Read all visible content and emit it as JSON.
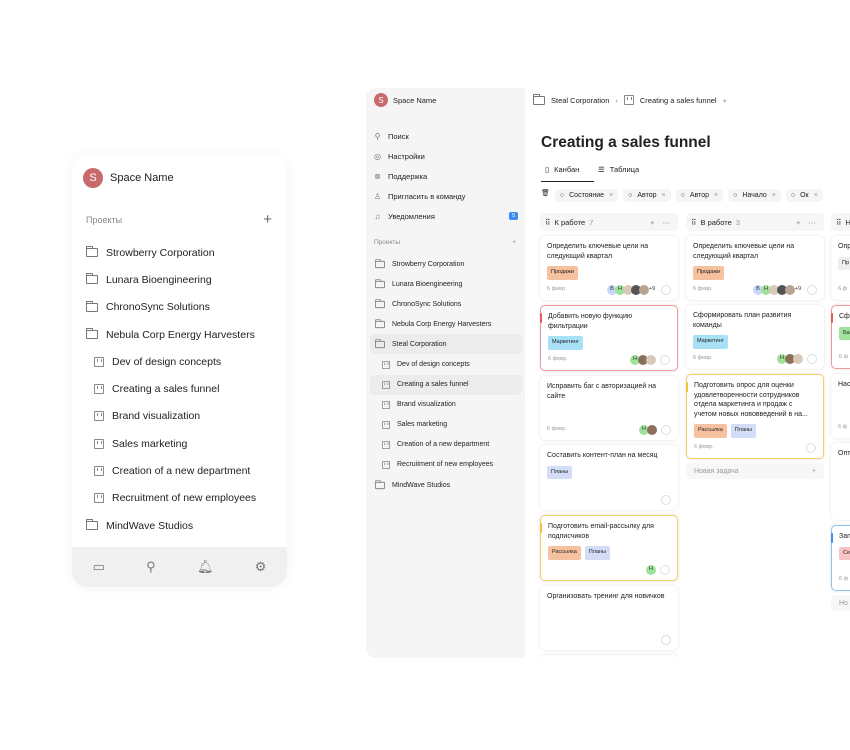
{
  "mobile": {
    "space_initial": "S",
    "space_name": "Space Name",
    "section": "Проекты",
    "projects": [
      {
        "label": "Strowberry Corporation",
        "type": "folder"
      },
      {
        "label": "Lunara Bioengineering",
        "type": "folder"
      },
      {
        "label": "ChronoSync Solutions",
        "type": "folder"
      },
      {
        "label": "Nebula Corp Energy Harvesters",
        "type": "folder"
      },
      {
        "label": "Dev of design concepts",
        "type": "board"
      },
      {
        "label": "Creating a sales funnel",
        "type": "board"
      },
      {
        "label": "Brand visualization",
        "type": "board"
      },
      {
        "label": "Sales marketing",
        "type": "board"
      },
      {
        "label": "Creation of a new department",
        "type": "board"
      },
      {
        "label": "Recruitment of new employees",
        "type": "board"
      },
      {
        "label": "MindWave Studios",
        "type": "folder"
      }
    ],
    "bottom_bar": [
      "folder-icon",
      "search-icon",
      "bell-icon",
      "gear-icon"
    ]
  },
  "sidebar": {
    "space_initial": "S",
    "space_name": "Space Name",
    "nav": [
      {
        "label": "Поиск",
        "icon": "search-icon"
      },
      {
        "label": "Настройки",
        "icon": "settings-icon"
      },
      {
        "label": "Поддержка",
        "icon": "support-icon"
      },
      {
        "label": "Пригласить в команду",
        "icon": "invite-icon"
      },
      {
        "label": "Уведомления",
        "icon": "bell-icon",
        "badge": "5"
      }
    ],
    "section": "Проекты",
    "projects": [
      {
        "label": "Strowberry Corporation",
        "type": "folder"
      },
      {
        "label": "Lunara Bioengineering",
        "type": "folder"
      },
      {
        "label": "ChronoSync Solutions",
        "type": "folder"
      },
      {
        "label": "Nebula Corp Energy Harvesters",
        "type": "folder"
      },
      {
        "label": "Steal Corporation",
        "type": "folder",
        "active": true
      },
      {
        "label": "Dev of design concepts",
        "type": "board"
      },
      {
        "label": "Creating a sales funnel",
        "type": "board",
        "active": true
      },
      {
        "label": "Brand visualization",
        "type": "board"
      },
      {
        "label": "Sales marketing",
        "type": "board"
      },
      {
        "label": "Creation of a new department",
        "type": "board"
      },
      {
        "label": "Recruitment of new employees",
        "type": "board"
      },
      {
        "label": "MindWave Studios",
        "type": "folder"
      }
    ]
  },
  "breadcrumb": {
    "parent": "Steal Corporation",
    "current": "Creating a sales funnel"
  },
  "page_title": "Creating a sales funnel",
  "tabs": [
    {
      "label": "Канбан",
      "active": true
    },
    {
      "label": "Таблица"
    }
  ],
  "filters": [
    {
      "label": "Состояние"
    },
    {
      "label": "Автор"
    },
    {
      "label": "Автор"
    },
    {
      "label": "Начало"
    },
    {
      "label": "Ок"
    }
  ],
  "tag_colors": {
    "Продажи": "#f5c19e",
    "Маркетинг": "#a8e0f5",
    "Рассылка": "#f5c19e",
    "Планы": "#d3ddf7",
    "Баг": "#9fe29a",
    "Сет": "#f7c3c3"
  },
  "columns": [
    {
      "title": "К работе",
      "count": "7",
      "cards": [
        {
          "title": "Определить ключевые цели на следующий квартал",
          "tags": [
            "Продажи"
          ],
          "date": "6 февр.",
          "avatars": [
            "В",
            "Н",
            "",
            "",
            ""
          ],
          "more": "+9"
        },
        {
          "title": "Добавить новую функцию фильтрации",
          "tags": [
            "Маркетинг"
          ],
          "date": "6 февр.",
          "avatars": [
            "Н",
            "",
            ""
          ],
          "priority": "red"
        },
        {
          "title": "Исправить баг с авторизацией на сайте",
          "tags": [],
          "date": "6 февр.",
          "avatars": [
            "Н",
            ""
          ]
        },
        {
          "title": "Составить контент-план на месяц",
          "tags": [
            "Планы"
          ],
          "date": "",
          "avatars": []
        },
        {
          "title": "Подготовить email-рассылку для подписчиков",
          "tags": [
            "Рассылка",
            "Планы"
          ],
          "date": "",
          "avatars": [
            "Н"
          ],
          "priority": "yellow"
        },
        {
          "title": "Организовать тренинг для новичков",
          "tags": [],
          "date": "",
          "avatars": []
        },
        {
          "title": "",
          "tags": [],
          "date": "",
          "avatars": []
        }
      ]
    },
    {
      "title": "В работе",
      "count": "3",
      "new_task": "Новая задача",
      "cards": [
        {
          "title": "Определить ключевые цели на следующий квартал",
          "tags": [
            "Продажи"
          ],
          "date": "6 февр.",
          "avatars": [
            "В",
            "Н",
            "",
            "",
            ""
          ],
          "more": "+9"
        },
        {
          "title": "Сформировать план развития команды",
          "tags": [
            "Маркетинг"
          ],
          "date": "6 февр.",
          "avatars": [
            "Н",
            "",
            ""
          ]
        },
        {
          "title": "Подготовить опрос для оценки удовлетворенности сотрудников отдела маркетинга и продаж с учетом новых нововведений в на...",
          "tags": [
            "Рассылка",
            "Планы"
          ],
          "date": "6 февр.",
          "avatars": [],
          "priority": "yellow"
        }
      ]
    },
    {
      "title": "Н",
      "count": "",
      "new_task": "Но",
      "cards": [
        {
          "title": "Опр сле",
          "tags": [
            "Пр"
          ],
          "date": "6 ф",
          "avatars": []
        },
        {
          "title": "Сфо ком",
          "tags": [
            "Баг"
          ],
          "date": "6 ф",
          "avatars": [],
          "priority": "red"
        },
        {
          "title": "Нас пла",
          "tags": [],
          "date": "6 ф",
          "avatars": []
        },
        {
          "title": "Опт загр",
          "tags": [],
          "date": "",
          "avatars": []
        },
        {
          "title": "Зап в со",
          "tags": [
            "Сет"
          ],
          "date": "6 ф",
          "avatars": [],
          "priority": "blue"
        }
      ]
    }
  ]
}
